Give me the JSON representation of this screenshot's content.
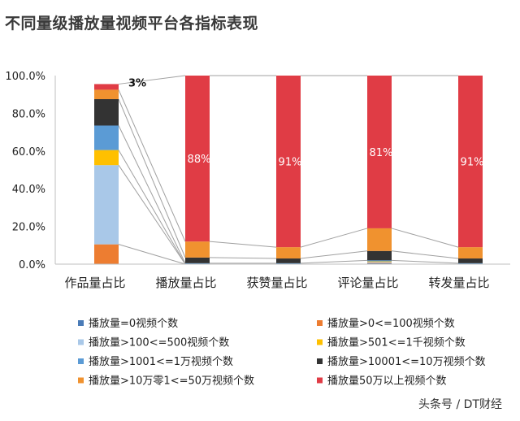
{
  "title": "不同量级播放量视频平台各指标表现",
  "watermark": "头条号 / DT财经",
  "chart_data": {
    "type": "bar",
    "stacked": true,
    "categories": [
      "作品量占比",
      "播放量占比",
      "获赞量占比",
      "评论量占比",
      "转发量占比"
    ],
    "ylim": [
      0,
      100
    ],
    "yticks": [
      "0.0%",
      "20.0%",
      "40.0%",
      "60.0%",
      "80.0%",
      "100.0%"
    ],
    "grid": false,
    "legend_position": "bottom",
    "series": [
      {
        "name": "播放量=0视频个数",
        "color": "#4a7bb7",
        "values": [
          0,
          0,
          0,
          0.5,
          0
        ]
      },
      {
        "name": "播放量>0<=100视频个数",
        "color": "#ed7d31",
        "values": [
          10.5,
          0,
          0,
          0.3,
          0
        ]
      },
      {
        "name": "播放量>100<=500视频个数",
        "color": "#a9c8e8",
        "values": [
          42,
          0,
          0,
          0.4,
          0
        ]
      },
      {
        "name": "播放量>501<=1千视频个数",
        "color": "#ffc000",
        "values": [
          8,
          0,
          0,
          0.3,
          0
        ]
      },
      {
        "name": "播放量>1001<=1万视频个数",
        "color": "#5b9bd5",
        "values": [
          13,
          0.5,
          0.5,
          0.5,
          0.5
        ]
      },
      {
        "name": "播放量>10001<=10万视频个数",
        "color": "#333333",
        "values": [
          14,
          3,
          2.5,
          5,
          2.5
        ]
      },
      {
        "name": "播放量>10万零1<=50万视频个数",
        "color": "#f0922f",
        "values": [
          5,
          8.5,
          6,
          12,
          6
        ]
      },
      {
        "name": "播放量50万以上视频个数",
        "color": "#e03c45",
        "values": [
          3,
          88,
          91,
          81,
          91
        ]
      }
    ],
    "data_labels": [
      "3%",
      "88%",
      "91%",
      "81%",
      "91%"
    ]
  }
}
